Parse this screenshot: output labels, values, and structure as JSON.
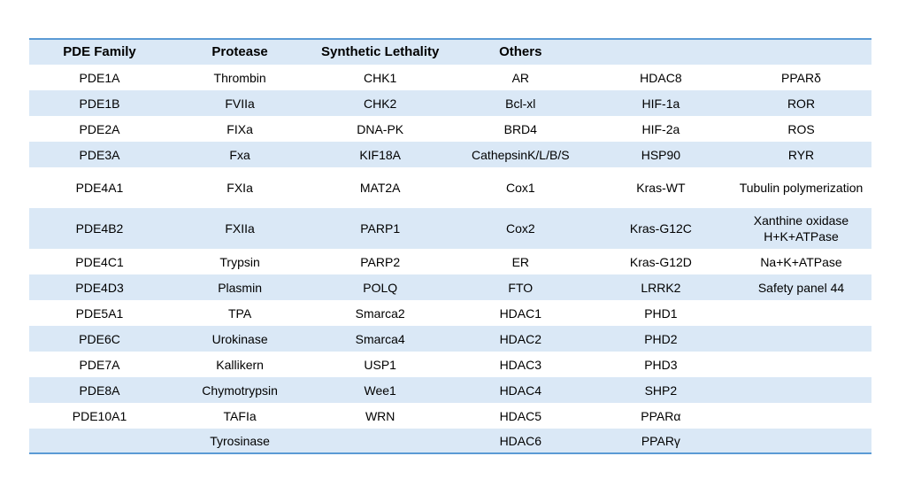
{
  "table": {
    "header": [
      "PDE Family",
      "Protease",
      "Synthetic Lethality",
      "Others"
    ],
    "rows": [
      [
        "PDE1A",
        "Thrombin",
        "CHK1",
        "AR",
        "HDAC8",
        "PPARδ"
      ],
      [
        "PDE1B",
        "FVIIa",
        "CHK2",
        "Bcl-xl",
        "HIF-1a",
        "ROR"
      ],
      [
        "PDE2A",
        "FIXa",
        "DNA-PK",
        "BRD4",
        "HIF-2a",
        "ROS"
      ],
      [
        "PDE3A",
        "Fxa",
        "KIF18A",
        "CathepsinK/L/B/S",
        "HSP90",
        "RYR"
      ],
      [
        "PDE4A1",
        "FXIa",
        "MAT2A",
        "Cox1",
        "Kras-WT",
        "Tubulin polymerization"
      ],
      [
        "PDE4B2",
        "FXIIa",
        "PARP1",
        "Cox2",
        "Kras-G12C",
        [
          "Xanthine oxidase",
          "H+K+ATPase"
        ]
      ],
      [
        "PDE4C1",
        "Trypsin",
        "PARP2",
        "ER",
        "Kras-G12D",
        "Na+K+ATPase"
      ],
      [
        "PDE4D3",
        "Plasmin",
        "POLQ",
        "FTO",
        "LRRK2",
        "Safety panel 44"
      ],
      [
        "PDE5A1",
        "TPA",
        "Smarca2",
        "HDAC1",
        "PHD1",
        null
      ],
      [
        "PDE6C",
        "Urokinase",
        "Smarca4",
        "HDAC2",
        "PHD2",
        null
      ],
      [
        "PDE7A",
        "Kallikern",
        "USP1",
        "HDAC3",
        "PHD3",
        null
      ],
      [
        "PDE8A",
        "Chymotrypsin",
        "Wee1",
        "HDAC4",
        "SHP2",
        null
      ],
      [
        "PDE10A1",
        "TAFIa",
        "WRN",
        "HDAC5",
        "PPARα",
        null
      ],
      [
        null,
        "Tyrosinase",
        null,
        "HDAC6",
        "PPARγ",
        null
      ]
    ]
  }
}
